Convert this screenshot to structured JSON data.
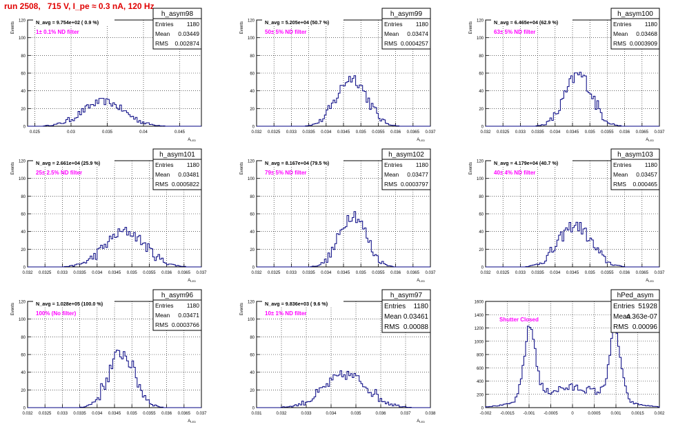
{
  "run_title": "run 2508,   715 V, I_pe ≈ 0.3 nA, 120 Hz",
  "stats_labels": {
    "entries": "Entries",
    "mean": "Mean",
    "rms": "RMS"
  },
  "colors": {
    "histogram": "#000080",
    "annotation": "#ff00ff",
    "title": "#e00000",
    "grid": "#000000"
  },
  "chart_data": [
    {
      "type": "histogram",
      "name": "h_asym98",
      "navg": "N_avg = 9.754e+02 ( 0.9 %)",
      "filter": "1± 0.1% ND filter",
      "entries": "1180",
      "mean": "0.03449",
      "rms": "0.002874",
      "ylabel": "Events",
      "xlabel": "A",
      "xlim": [
        0.024,
        0.048
      ],
      "ylim": [
        0,
        120
      ],
      "xticks": [
        "0.025",
        "0.03",
        "0.035",
        "0.04",
        "0.045"
      ],
      "xtick_values": [
        0.025,
        0.03,
        0.035,
        0.04,
        0.045
      ],
      "yticks": [
        0,
        20,
        40,
        60,
        80,
        100,
        120
      ],
      "peaks": [
        {
          "center": 0.03449,
          "sigma": 0.00287,
          "height": 28
        }
      ],
      "noise": 4
    },
    {
      "type": "histogram",
      "name": "h_asym99",
      "navg": "N_avg = 5.205e+04 (50.7 %)",
      "filter": "50± 5% ND filter",
      "entries": "1180",
      "mean": "0.03474",
      "rms": "0.0004257",
      "ylabel": "Events",
      "xlabel": "A",
      "xlim": [
        0.032,
        0.037
      ],
      "ylim": [
        0,
        120
      ],
      "xticks": [
        "0.032",
        "0.0325",
        "0.033",
        "0.0335",
        "0.034",
        "0.0345",
        "0.035",
        "0.0355",
        "0.036",
        "0.0365",
        "0.037"
      ],
      "xtick_values": [
        0.032,
        0.0325,
        0.033,
        0.0335,
        0.034,
        0.0345,
        0.035,
        0.0355,
        0.036,
        0.0365,
        0.037
      ],
      "yticks": [
        0,
        20,
        40,
        60,
        80,
        100,
        120
      ],
      "peaks": [
        {
          "center": 0.03474,
          "sigma": 0.00043,
          "height": 55
        }
      ],
      "noise": 7
    },
    {
      "type": "histogram",
      "name": "h_asym100",
      "navg": "N_avg = 6.465e+04 (62.9 %)",
      "filter": "63± 5% ND filter",
      "entries": "1180",
      "mean": "0.03468",
      "rms": "0.0003909",
      "ylabel": "Events",
      "xlabel": "A",
      "xlim": [
        0.032,
        0.037
      ],
      "ylim": [
        0,
        120
      ],
      "xticks": [
        "0.032",
        "0.0325",
        "0.033",
        "0.0335",
        "0.034",
        "0.0345",
        "0.035",
        "0.0355",
        "0.036",
        "0.0365",
        "0.037"
      ],
      "xtick_values": [
        0.032,
        0.0325,
        0.033,
        0.0335,
        0.034,
        0.0345,
        0.035,
        0.0355,
        0.036,
        0.0365,
        0.037
      ],
      "yticks": [
        0,
        20,
        40,
        60,
        80,
        100,
        120
      ],
      "peaks": [
        {
          "center": 0.03468,
          "sigma": 0.00039,
          "height": 58
        }
      ],
      "noise": 8
    },
    {
      "type": "histogram",
      "name": "h_asym101",
      "navg": "N_avg = 2.661e+04 (25.9 %)",
      "filter": "25± 2.5% ND filter",
      "entries": "1180",
      "mean": "0.03481",
      "rms": "0.0005822",
      "ylabel": "Events",
      "xlabel": "A",
      "xlim": [
        0.032,
        0.037
      ],
      "ylim": [
        0,
        120
      ],
      "xticks": [
        "0.032",
        "0.0325",
        "0.033",
        "0.0335",
        "0.034",
        "0.0345",
        "0.035",
        "0.0355",
        "0.036",
        "0.0365",
        "0.037"
      ],
      "xtick_values": [
        0.032,
        0.0325,
        0.033,
        0.0335,
        0.034,
        0.0345,
        0.035,
        0.0355,
        0.036,
        0.0365,
        0.037
      ],
      "yticks": [
        0,
        20,
        40,
        60,
        80,
        100,
        120
      ],
      "peaks": [
        {
          "center": 0.03481,
          "sigma": 0.00058,
          "height": 40
        }
      ],
      "noise": 6
    },
    {
      "type": "histogram",
      "name": "h_asym102",
      "navg": "N_avg = 8.167e+04 (79.5 %)",
      "filter": "79± 5% ND filter",
      "entries": "1180",
      "mean": "0.03477",
      "rms": "0.0003797",
      "ylabel": "Events",
      "xlabel": "A",
      "xlim": [
        0.032,
        0.037
      ],
      "ylim": [
        0,
        120
      ],
      "xticks": [
        "0.032",
        "0.0325",
        "0.033",
        "0.0335",
        "0.034",
        "0.0345",
        "0.035",
        "0.0355",
        "0.036",
        "0.0365",
        "0.037"
      ],
      "xtick_values": [
        0.032,
        0.0325,
        0.033,
        0.0335,
        0.034,
        0.0345,
        0.035,
        0.0355,
        0.036,
        0.0365,
        0.037
      ],
      "yticks": [
        0,
        20,
        40,
        60,
        80,
        100,
        120
      ],
      "peaks": [
        {
          "center": 0.03477,
          "sigma": 0.00038,
          "height": 60
        }
      ],
      "noise": 8
    },
    {
      "type": "histogram",
      "name": "h_asym103",
      "navg": "N_avg = 4.179e+04 (40.7 %)",
      "filter": "40± 4% ND filter",
      "entries": "1180",
      "mean": "0.03457",
      "rms": "0.000465",
      "ylabel": "Events",
      "xlabel": "A",
      "xlim": [
        0.032,
        0.037
      ],
      "ylim": [
        0,
        120
      ],
      "xticks": [
        "0.032",
        "0.0325",
        "0.033",
        "0.0335",
        "0.034",
        "0.0345",
        "0.035",
        "0.0355",
        "0.036",
        "0.0365",
        "0.037"
      ],
      "xtick_values": [
        0.032,
        0.0325,
        0.033,
        0.0335,
        0.034,
        0.0345,
        0.035,
        0.0355,
        0.036,
        0.0365,
        0.037
      ],
      "yticks": [
        0,
        20,
        40,
        60,
        80,
        100,
        120
      ],
      "peaks": [
        {
          "center": 0.03457,
          "sigma": 0.000465,
          "height": 47
        }
      ],
      "noise": 7
    },
    {
      "type": "histogram",
      "name": "h_asym96",
      "navg": "N_avg = 1.028e+05 (100.0 %)",
      "filter": "100% (No filter)",
      "entries": "1180",
      "mean": "0.03471",
      "rms": "0.0003766",
      "ylabel": "Events",
      "xlabel": "A",
      "xlim": [
        0.032,
        0.037
      ],
      "ylim": [
        0,
        120
      ],
      "xticks": [
        "0.032",
        "0.0325",
        "0.033",
        "0.0335",
        "0.034",
        "0.0345",
        "0.035",
        "0.0355",
        "0.036",
        "0.0365",
        "0.037"
      ],
      "xtick_values": [
        0.032,
        0.0325,
        0.033,
        0.0335,
        0.034,
        0.0345,
        0.035,
        0.0355,
        0.036,
        0.0365,
        0.037
      ],
      "yticks": [
        0,
        20,
        40,
        60,
        80,
        100,
        120
      ],
      "peaks": [
        {
          "center": 0.03471,
          "sigma": 0.00038,
          "height": 62
        }
      ],
      "noise": 9
    },
    {
      "type": "histogram",
      "name": "h_asym97",
      "navg": "N_avg = 9.836e+03 ( 9.6 %)",
      "filter": "10± 1% ND filter",
      "entries": "1180",
      "mean": "0.03461",
      "rms": "0.00088",
      "big_stats": true,
      "ylabel": "Events",
      "xlabel": "A",
      "xlim": [
        0.031,
        0.038
      ],
      "ylim": [
        0,
        120
      ],
      "xticks": [
        "0.031",
        "0.032",
        "0.033",
        "0.034",
        "0.035",
        "0.036",
        "0.037",
        "0.038"
      ],
      "xtick_values": [
        0.031,
        0.032,
        0.033,
        0.034,
        0.035,
        0.036,
        0.037,
        0.038
      ],
      "yticks": [
        0,
        20,
        40,
        60,
        80,
        100,
        120
      ],
      "peaks": [
        {
          "center": 0.03461,
          "sigma": 0.00088,
          "height": 37
        }
      ],
      "noise": 6
    },
    {
      "type": "histogram",
      "name": "hPed_asym",
      "navg": "",
      "filter": "Shutter Closed",
      "filter_pos": "center",
      "entries": "51928",
      "mean": "4.363e-07",
      "rms": "0.00096",
      "big_stats": true,
      "ylabel": "",
      "xlabel": "",
      "xlim": [
        -0.002,
        0.002
      ],
      "ylim": [
        0,
        1600
      ],
      "xticks": [
        "-0.002",
        "-0.0015",
        "-0.001",
        "-0.0005",
        "0",
        "0.0005",
        "0.001",
        "0.0015",
        "0.002"
      ],
      "xtick_values": [
        -0.002,
        -0.0015,
        -0.001,
        -0.0005,
        0,
        0.0005,
        0.001,
        0.0015,
        0.002
      ],
      "yticks": [
        0,
        200,
        400,
        600,
        800,
        1000,
        1200,
        1400,
        1600
      ],
      "peaks": [
        {
          "center": -0.00098,
          "sigma": 0.00013,
          "height": 1080
        },
        {
          "center": 0.00098,
          "sigma": 0.00013,
          "height": 1000
        },
        {
          "center": 0.0,
          "sigma": 0.0008,
          "height": 300
        }
      ],
      "noise": 70
    }
  ]
}
